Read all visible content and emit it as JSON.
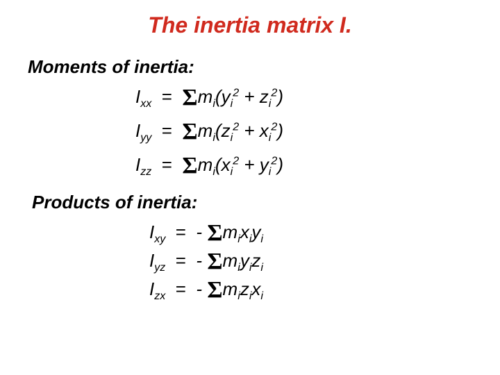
{
  "title": {
    "text": "The inertia matrix I.",
    "color": "#d02a1e",
    "fontsize": 32
  },
  "sections": {
    "moments": {
      "label": "Moments of inertia:"
    },
    "products": {
      "label": "Products of inertia:"
    }
  },
  "equations": {
    "moments": [
      {
        "lhs_main": "I",
        "lhs_sub": "xx",
        "var1": "y",
        "var2": "z"
      },
      {
        "lhs_main": "I",
        "lhs_sub": "yy",
        "var1": "z",
        "var2": "x"
      },
      {
        "lhs_main": "I",
        "lhs_sub": "zz",
        "var1": "x",
        "var2": "y"
      }
    ],
    "products": [
      {
        "lhs_main": "I",
        "lhs_sub": "xy",
        "a": "x",
        "b": "y"
      },
      {
        "lhs_main": "I",
        "lhs_sub": "yz",
        "a": "y",
        "b": "z"
      },
      {
        "lhs_main": "I",
        "lhs_sub": "zx",
        "a": "z",
        "b": "x"
      }
    ]
  },
  "symbols": {
    "sigma": "Σ",
    "mass": "m",
    "idx": "i",
    "sq": "2",
    "eq": "=",
    "minus": "-",
    "plus": "+",
    "lp": "(",
    "rp": ")"
  },
  "style": {
    "background": "#ffffff",
    "text_color": "#000000",
    "body_fontsize": 26
  }
}
